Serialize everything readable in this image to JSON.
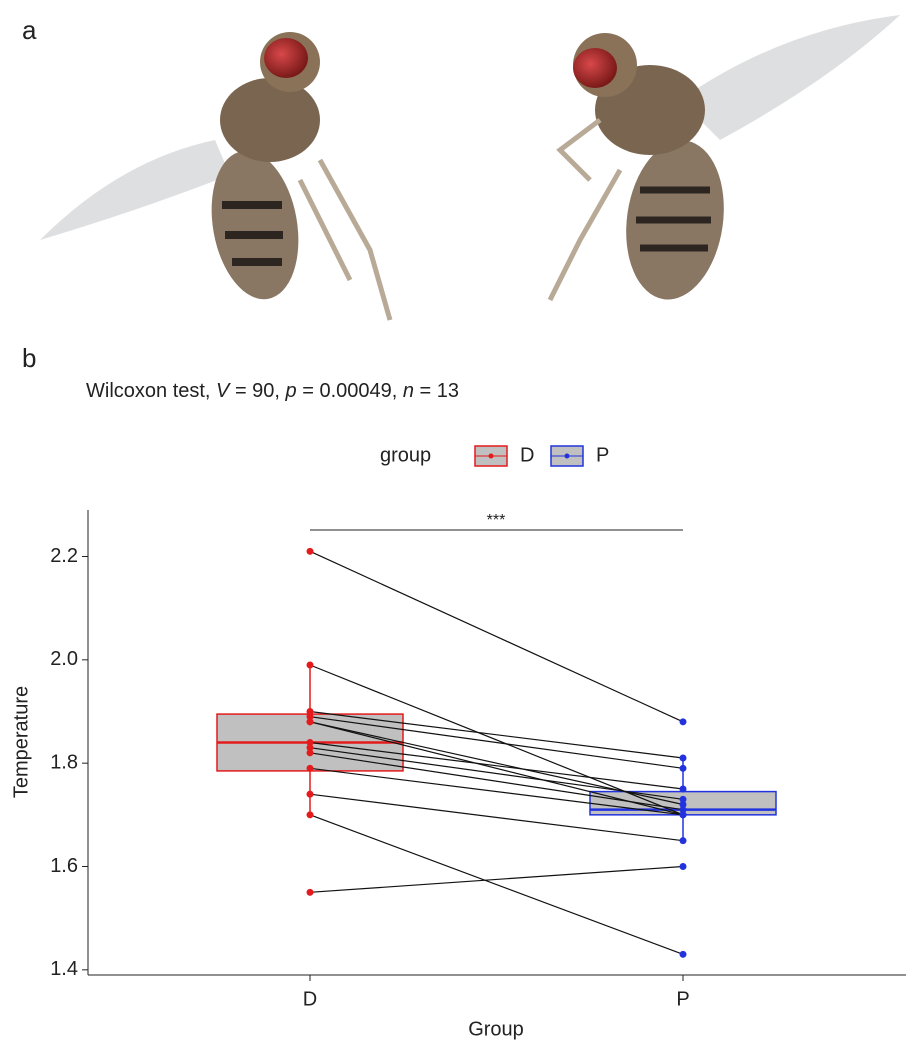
{
  "panel_labels": [
    "a",
    "b"
  ],
  "chart_data": {
    "type": "paired-box",
    "subtitle_parts": [
      {
        "text": "Wilcoxon test, "
      },
      {
        "text": "V",
        "italic": true
      },
      {
        "text": " = 90, "
      },
      {
        "text": "p",
        "italic": true
      },
      {
        "text": " = 0.00049, "
      },
      {
        "text": "n",
        "italic": true
      },
      {
        "text": " = 13"
      }
    ],
    "legend_title": "group",
    "x_label": "Group",
    "y_label": "Temperature",
    "significance": "***",
    "categories": [
      "D",
      "P"
    ],
    "series": [
      {
        "name": "D",
        "color": "#e41a1c",
        "values": [
          2.21,
          1.99,
          1.9,
          1.89,
          1.88,
          1.88,
          1.84,
          1.83,
          1.82,
          1.79,
          1.74,
          1.7,
          1.55
        ],
        "box": {
          "whisker_low": 1.7,
          "q1": 1.785,
          "median": 1.84,
          "q3": 1.895,
          "whisker_high": 1.99
        }
      },
      {
        "name": "P",
        "color": "#2233dd",
        "values": [
          1.88,
          1.7,
          1.81,
          1.79,
          1.7,
          1.72,
          1.75,
          1.73,
          1.71,
          1.7,
          1.65,
          1.43,
          1.6
        ],
        "box": {
          "whisker_low": 1.65,
          "q1": 1.7,
          "median": 1.71,
          "q3": 1.745,
          "whisker_high": 1.81
        }
      }
    ],
    "box_fill": "#c0c0c0",
    "pair_line_color": "#111111",
    "ylim": [
      1.39,
      2.29
    ],
    "yticks": [
      1.4,
      1.6,
      1.8,
      {
        "value": 2,
        "label": "2.0"
      },
      2.2
    ]
  }
}
